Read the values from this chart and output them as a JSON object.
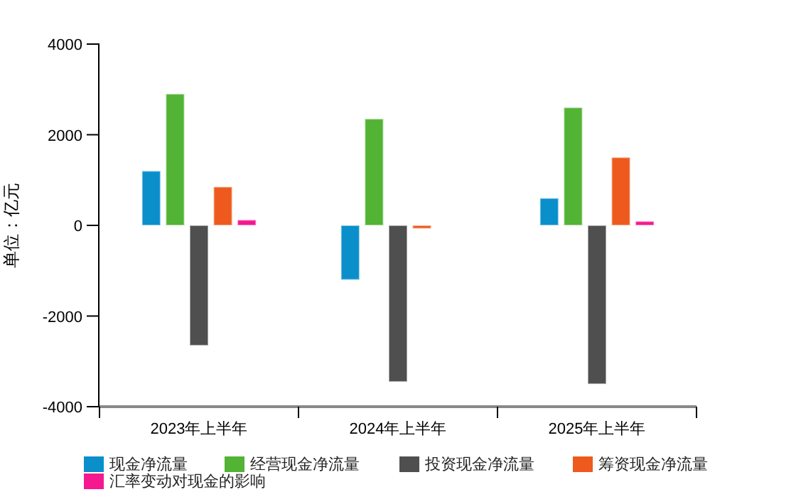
{
  "chart_data": {
    "type": "bar",
    "ylabel": "单位：亿元",
    "categories": [
      "2023年上半年",
      "2024年上半年",
      "2025年上半年"
    ],
    "series": [
      {
        "name": "现金净流量",
        "color": "#0a8fcb",
        "values": [
          1200,
          -1200,
          600
        ]
      },
      {
        "name": "经营现金净流量",
        "color": "#52b335",
        "values": [
          2900,
          2350,
          2600
        ]
      },
      {
        "name": "投资现金净流量",
        "color": "#4f4f4f",
        "values": [
          -2650,
          -3450,
          -3500
        ]
      },
      {
        "name": "筹资现金净流量",
        "color": "#ee5a1e",
        "values": [
          850,
          -70,
          1500
        ]
      },
      {
        "name": "汇率变动对现金的影响",
        "color": "#f5188f",
        "values": [
          120,
          null,
          90
        ]
      }
    ],
    "ylim": [
      -4000,
      4000
    ],
    "yticks": [
      -4000,
      -2000,
      0,
      2000,
      4000
    ],
    "grid": false,
    "legend": "bottom"
  }
}
